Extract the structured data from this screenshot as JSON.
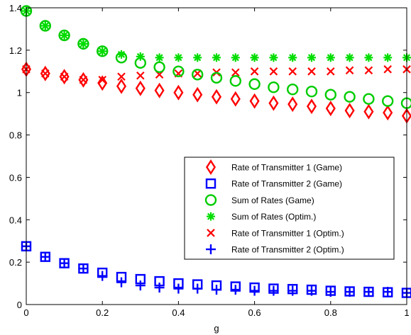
{
  "chart_data": {
    "type": "scatter",
    "title": "",
    "xlabel": "g",
    "ylabel": "",
    "xlim": [
      0,
      1
    ],
    "ylim": [
      0,
      1.4
    ],
    "xticks": [
      0,
      0.2,
      0.4,
      0.6,
      0.8,
      1
    ],
    "xtick_labels": [
      "0",
      "0.2",
      "0.4",
      "0.6",
      "0.8",
      "1"
    ],
    "yticks": [
      0,
      0.2,
      0.4,
      0.6,
      0.8,
      1,
      1.2,
      1.4
    ],
    "ytick_labels": [
      "0",
      "0.2",
      "0.4",
      "0.6",
      "0.8",
      "1",
      "1.2",
      "1.4"
    ],
    "grid": false,
    "legend_position": "center-right",
    "x": [
      0,
      0.05,
      0.1,
      0.15,
      0.2,
      0.25,
      0.3,
      0.35,
      0.4,
      0.45,
      0.5,
      0.55,
      0.6,
      0.65,
      0.7,
      0.75,
      0.8,
      0.85,
      0.9,
      0.95,
      1
    ],
    "series": [
      {
        "name": "Rate of Transmitter 1 (Game)",
        "marker": "diamond",
        "color": "#ff0000",
        "values": [
          1.11,
          1.09,
          1.075,
          1.06,
          1.045,
          1.03,
          1.02,
          1.01,
          1.0,
          0.99,
          0.98,
          0.97,
          0.96,
          0.95,
          0.945,
          0.935,
          0.925,
          0.915,
          0.91,
          0.905,
          0.89
        ]
      },
      {
        "name": "Rate of Transmitter 2 (Game)",
        "marker": "square",
        "color": "#0000ff",
        "values": [
          0.275,
          0.225,
          0.195,
          0.17,
          0.15,
          0.13,
          0.12,
          0.11,
          0.1,
          0.095,
          0.09,
          0.085,
          0.08,
          0.075,
          0.073,
          0.07,
          0.065,
          0.062,
          0.06,
          0.058,
          0.055
        ]
      },
      {
        "name": "Sum of Rates (Game)",
        "marker": "circle",
        "color": "#00cc00",
        "values": [
          1.385,
          1.315,
          1.27,
          1.23,
          1.195,
          1.165,
          1.14,
          1.12,
          1.1,
          1.085,
          1.07,
          1.055,
          1.04,
          1.025,
          1.015,
          1.005,
          0.99,
          0.98,
          0.97,
          0.96,
          0.95
        ]
      },
      {
        "name": "Sum of Rates (Optim.)",
        "marker": "asterisk",
        "color": "#00dd00",
        "values": [
          1.385,
          1.315,
          1.27,
          1.23,
          1.195,
          1.18,
          1.17,
          1.165,
          1.165,
          1.165,
          1.165,
          1.165,
          1.165,
          1.165,
          1.165,
          1.165,
          1.165,
          1.165,
          1.165,
          1.165,
          1.165
        ]
      },
      {
        "name": "Rate of Transmitter 1 (Optim.)",
        "marker": "x",
        "color": "#ff0000",
        "values": [
          1.11,
          1.09,
          1.075,
          1.06,
          1.06,
          1.075,
          1.08,
          1.085,
          1.09,
          1.09,
          1.095,
          1.095,
          1.1,
          1.1,
          1.1,
          1.1,
          1.1,
          1.105,
          1.105,
          1.11,
          1.11
        ]
      },
      {
        "name": "Rate of Transmitter 2 (Optim.)",
        "marker": "plus",
        "color": "#0000ff",
        "values": [
          0.275,
          0.225,
          0.195,
          0.17,
          0.135,
          0.105,
          0.09,
          0.08,
          0.075,
          0.075,
          0.07,
          0.07,
          0.065,
          0.065,
          0.065,
          0.065,
          0.06,
          0.06,
          0.06,
          0.06,
          0.055
        ]
      }
    ]
  }
}
